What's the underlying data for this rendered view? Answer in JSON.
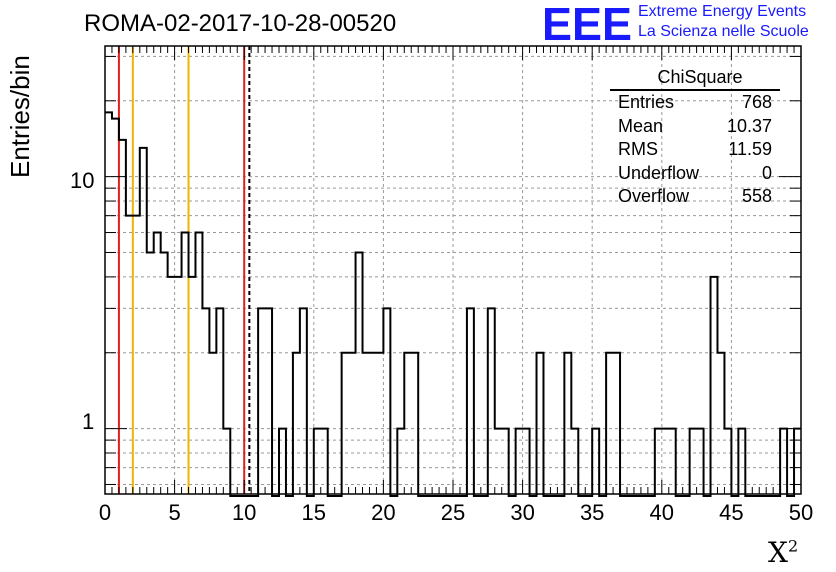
{
  "header": {
    "title": "ROMA-02-2017-10-28-00520",
    "logo_letters": "EEE",
    "logo_line1": "Extreme Energy Events",
    "logo_line2": "La Scienza nelle Scuole"
  },
  "axes": {
    "xlabel": "X",
    "xlabel_sup": "2",
    "ylabel": "Entries/bin",
    "x_ticks": [
      "0",
      "5",
      "10",
      "15",
      "20",
      "25",
      "30",
      "35",
      "40",
      "45",
      "50"
    ],
    "y_tick_labels": [
      "10",
      "1"
    ]
  },
  "stats": {
    "header": "ChiSquare",
    "rows": [
      {
        "label": "Entries",
        "value": "768"
      },
      {
        "label": "Mean",
        "value": "10.37"
      },
      {
        "label": "RMS",
        "value": "11.59"
      },
      {
        "label": "Underflow",
        "value": "0"
      },
      {
        "label": "Overflow",
        "value": "558"
      }
    ]
  },
  "colors": {
    "logo_blue": "#1a1aff",
    "line_red": "#e0201b",
    "line_orange": "#f0b400",
    "histogram": "#000000",
    "grid": "#9a9a9a"
  },
  "chart_data": {
    "type": "bar",
    "style": "step histogram",
    "title": "ROMA-02-2017-10-28-00520",
    "xlabel": "X²",
    "ylabel": "Entries/bin",
    "xlim": [
      0,
      50
    ],
    "ylim": [
      0.55,
      33
    ],
    "y_scale": "log",
    "grid": true,
    "bin_width": 0.5,
    "bin_edges_start": 0,
    "values": [
      18,
      17,
      14,
      7,
      7,
      13,
      5,
      6,
      5,
      4,
      4,
      6,
      4,
      6,
      3,
      2,
      3,
      1,
      0,
      0,
      0,
      0,
      3,
      3,
      0,
      1,
      0,
      2,
      3,
      0,
      1,
      1,
      0,
      0,
      2,
      2,
      5,
      2,
      2,
      2,
      3,
      0,
      1,
      2,
      2,
      0,
      0,
      0,
      0,
      0,
      0,
      0,
      3,
      0,
      0,
      3,
      1,
      1,
      0,
      1,
      1,
      0,
      2,
      0,
      0,
      0,
      2,
      1,
      0,
      0,
      1,
      0,
      2,
      2,
      0,
      0,
      0,
      0,
      0,
      1,
      1,
      1,
      0,
      0,
      1,
      1,
      0,
      4,
      2,
      1,
      0,
      1,
      0,
      0,
      0,
      0,
      0,
      1,
      0,
      1
    ],
    "vertical_lines": [
      {
        "x": 1,
        "style": "solid",
        "color": "#e0201b"
      },
      {
        "x": 2,
        "style": "solid",
        "color": "#f0b400"
      },
      {
        "x": 6,
        "style": "solid",
        "color": "#f0b400"
      },
      {
        "x": 10,
        "style": "solid",
        "color": "#e0201b"
      },
      {
        "x": 10.37,
        "style": "dashed",
        "color": "#000000"
      }
    ]
  }
}
